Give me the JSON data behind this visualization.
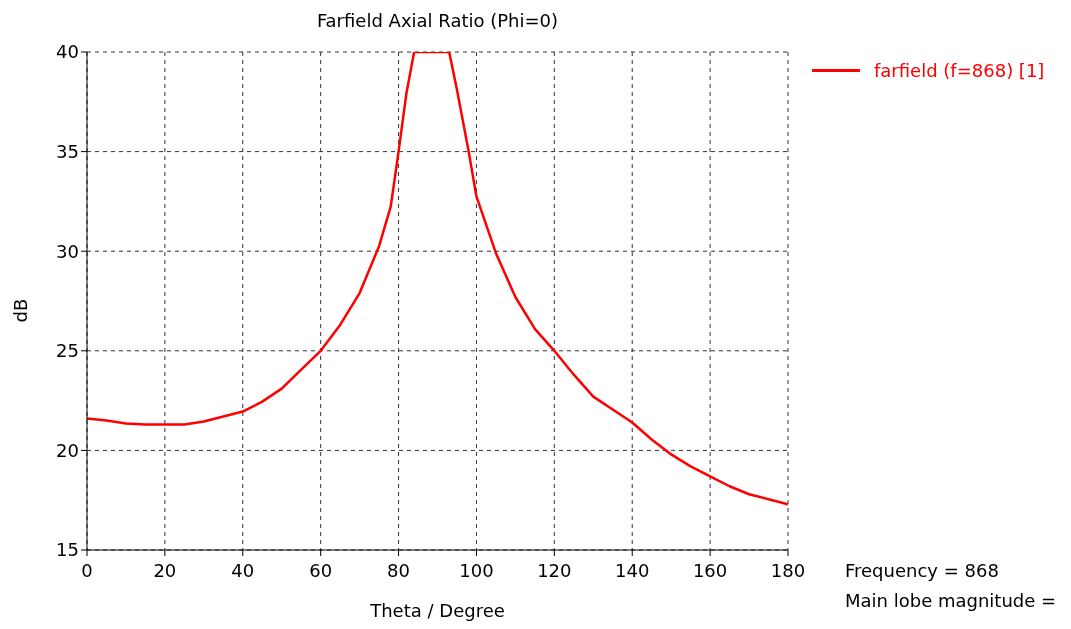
{
  "chart_data": {
    "type": "line",
    "title": "Farfield  Axial Ratio (Phi=0)",
    "xlabel": "Theta / Degree",
    "ylabel": "dB",
    "xlim": [
      0,
      180
    ],
    "xticks": [
      0,
      20,
      40,
      60,
      80,
      100,
      120,
      140,
      160,
      180
    ],
    "ylim": [
      15,
      40
    ],
    "yticks": [
      15,
      20,
      25,
      30,
      35,
      40
    ],
    "grid": true,
    "legend": "top right",
    "marker": "none",
    "line_style": "solid",
    "annotations": [
      "Frequency = 868",
      "Main lobe magnitude ="
    ],
    "series": [
      {
        "name": "farfield (f=868) [1]",
        "color": "#ff0000",
        "x": [
          0,
          5,
          10,
          15,
          20,
          25,
          30,
          35,
          40,
          45,
          50,
          55,
          60,
          65,
          70,
          75,
          78,
          80,
          82,
          84,
          93,
          95,
          98,
          100,
          105,
          110,
          115,
          120,
          125,
          130,
          135,
          140,
          145,
          150,
          155,
          160,
          165,
          170,
          175,
          180
        ],
        "values": [
          21.6,
          21.5,
          21.35,
          21.3,
          21.3,
          21.3,
          21.45,
          21.7,
          21.95,
          22.45,
          23.1,
          24.05,
          25,
          26.3,
          27.9,
          30.25,
          32.25,
          35,
          37.9,
          40,
          40,
          38.1,
          35,
          32.75,
          29.9,
          27.7,
          26.1,
          25,
          23.8,
          22.7,
          22.05,
          21.4,
          20.55,
          19.8,
          19.2,
          18.7,
          18.2,
          17.8,
          17.55,
          17.3
        ]
      }
    ]
  }
}
